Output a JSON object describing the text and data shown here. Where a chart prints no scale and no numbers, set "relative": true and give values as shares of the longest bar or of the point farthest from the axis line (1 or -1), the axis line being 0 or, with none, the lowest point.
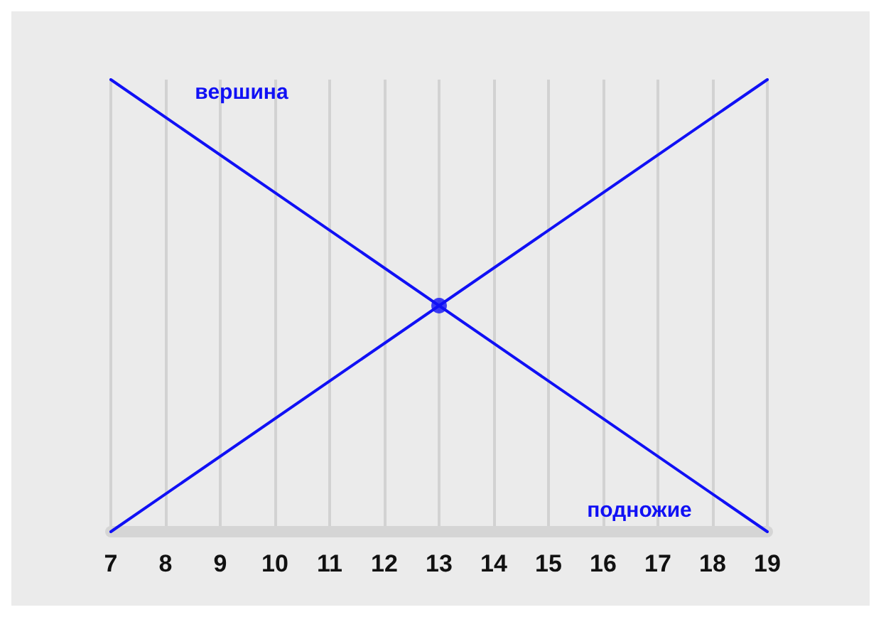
{
  "chart_data": {
    "type": "line",
    "relative": true,
    "xlim": [
      7,
      19
    ],
    "xticks": [
      7,
      8,
      9,
      10,
      11,
      12,
      13,
      14,
      15,
      16,
      17,
      18,
      19
    ],
    "grid": "x",
    "marker": "none",
    "line_style": "solid",
    "series": [
      {
        "color": "#1010f5",
        "x": [
          7,
          19
        ],
        "values": [
          1,
          0
        ]
      },
      {
        "color": "#1010f5",
        "x": [
          7,
          19
        ],
        "values": [
          0,
          1
        ]
      },
      {
        "type": "scatter",
        "marker": "circle",
        "color": "#1010f5",
        "x": [
          13
        ],
        "values": [
          0.5
        ]
      }
    ],
    "annotations": [
      "вершина",
      "подножие"
    ]
  }
}
